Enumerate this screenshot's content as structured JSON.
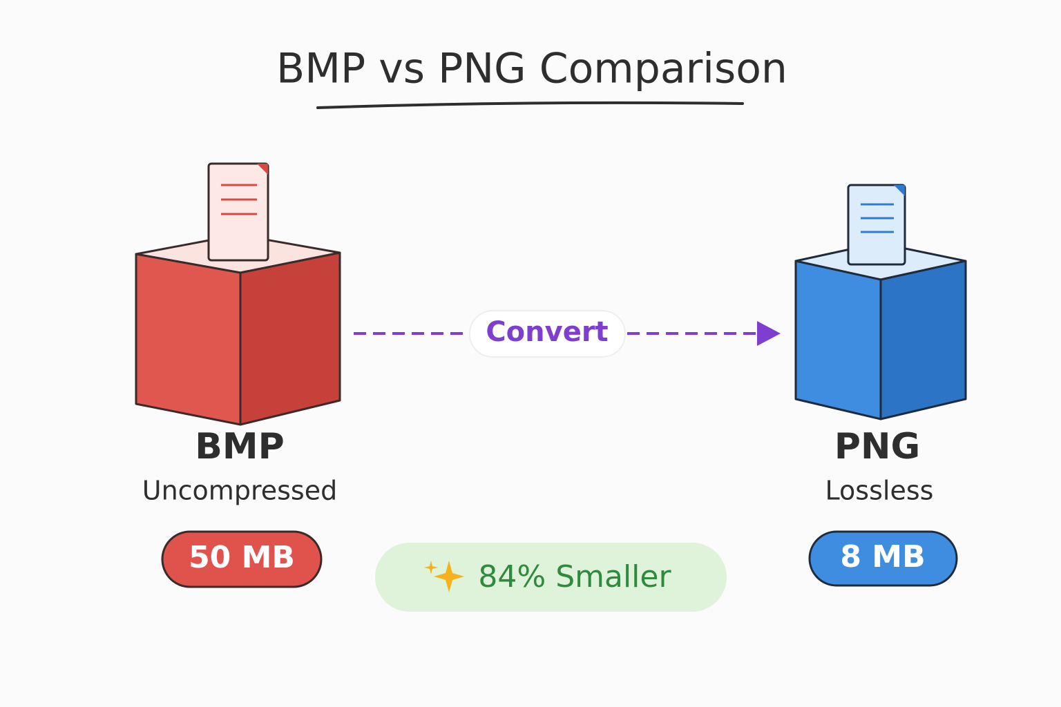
{
  "title": "BMP vs PNG Comparison",
  "source": {
    "name": "BMP",
    "description": "Uncompressed",
    "size": "50 MB"
  },
  "target": {
    "name": "PNG",
    "description": "Lossless",
    "size": "8 MB"
  },
  "arrow": {
    "label": "Convert"
  },
  "result": {
    "label": "84% Smaller"
  }
}
